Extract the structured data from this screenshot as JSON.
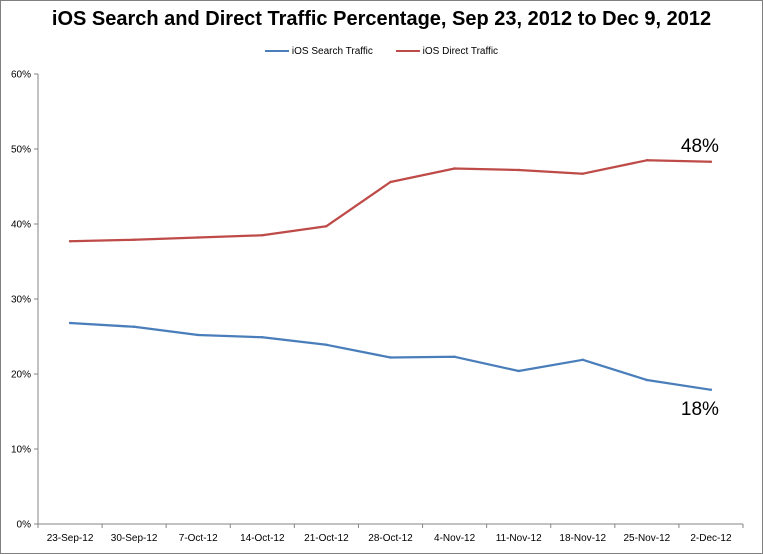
{
  "chart_data": {
    "type": "line",
    "title": "iOS Search and Direct Traffic Percentage, Sep 23, 2012 to Dec 9, 2012",
    "categories": [
      "23-Sep-12",
      "30-Sep-12",
      "7-Oct-12",
      "14-Oct-12",
      "21-Oct-12",
      "28-Oct-12",
      "4-Nov-12",
      "11-Nov-12",
      "18-Nov-12",
      "25-Nov-12",
      "2-Dec-12"
    ],
    "series": [
      {
        "name": "iOS Search Traffic",
        "color": "#4a7ebb",
        "values": [
          26.8,
          26.3,
          25.2,
          24.9,
          23.9,
          22.2,
          22.3,
          20.4,
          21.9,
          19.2,
          17.9
        ]
      },
      {
        "name": "iOS Direct Traffic",
        "color": "#be4b48",
        "values": [
          37.7,
          37.9,
          38.2,
          38.5,
          39.7,
          45.6,
          47.4,
          47.2,
          46.7,
          48.5,
          48.3
        ]
      }
    ],
    "ylim": [
      0,
      60
    ],
    "y_ticks": [
      "0%",
      "10%",
      "20%",
      "30%",
      "40%",
      "50%",
      "60%"
    ],
    "y_tick_values": [
      0,
      10,
      20,
      30,
      40,
      50,
      60
    ],
    "annotations": [
      {
        "text": "48%",
        "series": "iOS Direct Traffic"
      },
      {
        "text": "18%",
        "series": "iOS Search Traffic"
      }
    ],
    "grid": false,
    "legend_position": "top"
  }
}
